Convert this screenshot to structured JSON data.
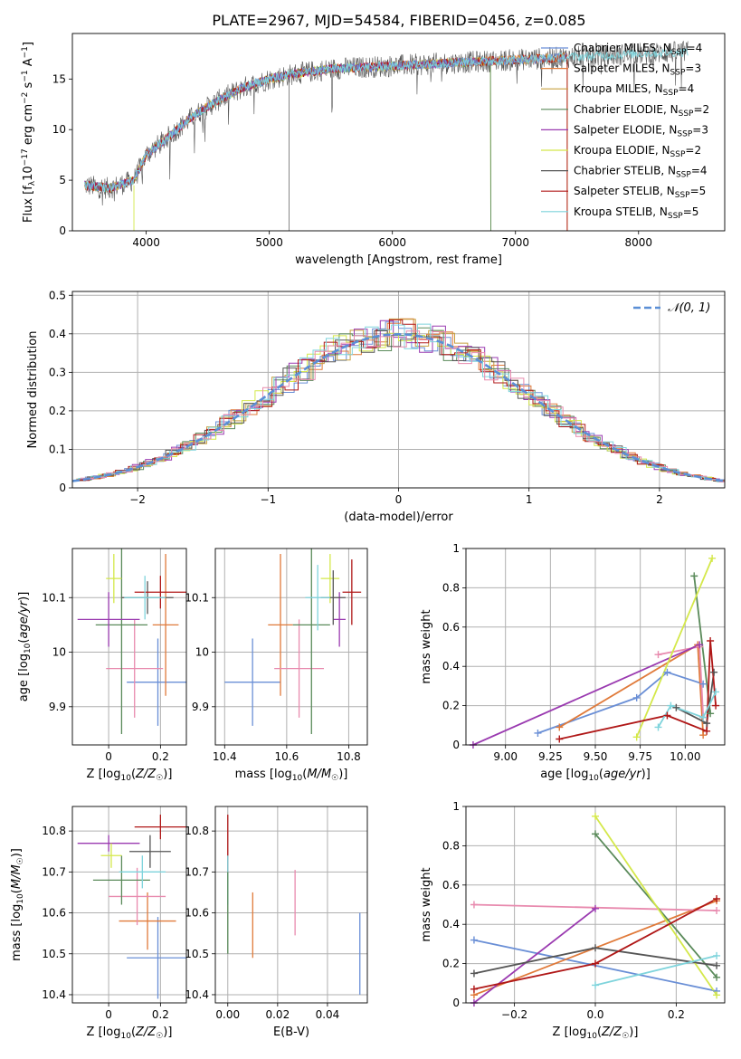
{
  "title": "PLATE=2967, MJD=54584, FIBERID=0456, z=0.085",
  "colors": {
    "chabrier_miles": "#6a8fd6",
    "salpeter_miles": "#e07a3a",
    "kroupa_miles": "#c8a040",
    "chabrier_elodie": "#5a8a5a",
    "salpeter_elodie": "#9a3ab0",
    "kroupa_elodie": "#d4e84a",
    "chabrier_stelib": "#555555",
    "salpeter_stelib": "#b01818",
    "kroupa_stelib": "#7fd4dc",
    "pink": "#e88aae",
    "normal": "#5b8fd6",
    "grid": "#b0b0b0"
  },
  "chart_data": [
    {
      "id": "spectrum",
      "type": "line",
      "xlabel": "wavelength [Angstrom, rest frame]",
      "ylabel": "Flux [f_λ10^-17 erg cm^-2 s^-1 A^-1]",
      "xlim": [
        3400,
        8700
      ],
      "ylim": [
        0,
        19.5
      ],
      "xticks": [
        4000,
        5000,
        6000,
        7000,
        8000
      ],
      "yticks": [
        0,
        5,
        10,
        15
      ],
      "legend_position": "upper right",
      "continuum_knots": [
        [
          3500,
          4.5
        ],
        [
          3700,
          4.2
        ],
        [
          3900,
          5.0
        ],
        [
          4000,
          7.5
        ],
        [
          4200,
          9.5
        ],
        [
          4400,
          11.5
        ],
        [
          4600,
          13.0
        ],
        [
          4800,
          14.2
        ],
        [
          5000,
          15.0
        ],
        [
          5200,
          15.5
        ],
        [
          5500,
          16.0
        ],
        [
          6000,
          16.3
        ],
        [
          6500,
          16.6
        ],
        [
          7000,
          16.9
        ],
        [
          7500,
          17.2
        ],
        [
          8000,
          17.5
        ],
        [
          8400,
          17.7
        ]
      ],
      "series": [
        {
          "name": "Chabrier MILES, N_SSP=4",
          "color_key": "chabrier_miles",
          "dash": false
        },
        {
          "name": "Salpeter MILES, N_SSP=3",
          "color_key": "salpeter_miles",
          "dash": false
        },
        {
          "name": "Kroupa MILES, N_SSP=4",
          "color_key": "kroupa_miles",
          "dash": false
        },
        {
          "name": "Chabrier ELODIE, N_SSP=2",
          "color_key": "chabrier_elodie",
          "dash": false
        },
        {
          "name": "Salpeter ELODIE, N_SSP=3",
          "color_key": "salpeter_elodie",
          "dash": false
        },
        {
          "name": "Kroupa ELODIE, N_SSP=2",
          "color_key": "kroupa_elodie",
          "dash": false
        },
        {
          "name": "Chabrier STELIB, N_SSP=4",
          "color_key": "chabrier_stelib",
          "dash": false
        },
        {
          "name": "Salpeter STELIB, N_SSP=5",
          "color_key": "salpeter_stelib",
          "dash": false
        },
        {
          "name": "Kroupa STELIB, N_SSP=5",
          "color_key": "kroupa_stelib",
          "dash": false
        }
      ],
      "legend_labels": [
        [
          "Chabrier MILES, N",
          "SSP",
          "=4"
        ],
        [
          "Salpeter MILES, N",
          "SSP",
          "=3"
        ],
        [
          "Kroupa MILES, N",
          "SSP",
          "=4"
        ],
        [
          "Chabrier ELODIE, N",
          "SSP",
          "=2"
        ],
        [
          "Salpeter ELODIE, N",
          "SSP",
          "=3"
        ],
        [
          "Kroupa ELODIE, N",
          "SSP",
          "=2"
        ],
        [
          "Chabrier STELIB, N",
          "SSP",
          "=4"
        ],
        [
          "Salpeter STELIB, N",
          "SSP",
          "=5"
        ],
        [
          "Kroupa STELIB, N",
          "SSP",
          "=5"
        ]
      ]
    },
    {
      "id": "residuals",
      "type": "histogram",
      "xlabel": "(data-model)/error",
      "ylabel": "Normed distribution",
      "xlim": [
        -2.5,
        2.5
      ],
      "ylim": [
        0,
        0.51
      ],
      "xticks": [
        -2,
        -1,
        0,
        1,
        2
      ],
      "yticks": [
        0.0,
        0.1,
        0.2,
        0.3,
        0.4,
        0.5
      ],
      "bin_width": 0.1,
      "bin_start": -2.5,
      "reference": {
        "name": "N(0,1)",
        "label_main": "𝒩(0, 1)",
        "type": "gaussian",
        "mean": 0,
        "sigma": 1
      },
      "grid": true
    },
    {
      "id": "age_vs_Z",
      "type": "errorbar",
      "xlabel": "Z [log10(Z/Z☉)]",
      "ylabel": "age [log10(age/yr)]",
      "xlim": [
        -0.14,
        0.3
      ],
      "ylim": [
        9.83,
        10.19
      ],
      "xticks": [
        0.0,
        0.2
      ],
      "yticks": [
        9.9,
        10.0,
        10.1
      ],
      "points": [
        {
          "x": 0.19,
          "y": 9.945,
          "xerr": 0.12,
          "yerr": 0.08,
          "color_key": "chabrier_miles"
        },
        {
          "x": 0.22,
          "y": 10.05,
          "xerr": 0.05,
          "yerr": 0.13,
          "color_key": "salpeter_miles"
        },
        {
          "x": 0.1,
          "y": 9.97,
          "xerr": 0.11,
          "yerr": 0.09,
          "color_key": "pink"
        },
        {
          "x": 0.05,
          "y": 10.05,
          "xerr": 0.1,
          "yerr": 0.2,
          "color_key": "chabrier_elodie"
        },
        {
          "x": 0.0,
          "y": 10.06,
          "xerr": 0.12,
          "yerr": 0.05,
          "color_key": "salpeter_elodie"
        },
        {
          "x": 0.02,
          "y": 10.135,
          "xerr": 0.03,
          "yerr": 0.045,
          "color_key": "kroupa_elodie"
        },
        {
          "x": 0.15,
          "y": 10.1,
          "xerr": 0.1,
          "yerr": 0.03,
          "color_key": "chabrier_stelib"
        },
        {
          "x": 0.2,
          "y": 10.11,
          "xerr": 0.1,
          "yerr": 0.03,
          "color_key": "salpeter_stelib"
        },
        {
          "x": 0.14,
          "y": 10.1,
          "xerr": 0.08,
          "yerr": 0.04,
          "color_key": "kroupa_stelib"
        }
      ]
    },
    {
      "id": "age_vs_mass",
      "type": "errorbar",
      "xlabel": "mass [log10(M/M☉)]",
      "ylabel": "",
      "xlim": [
        10.37,
        10.86
      ],
      "ylim": [
        9.83,
        10.19
      ],
      "xticks": [
        10.4,
        10.6,
        10.8
      ],
      "yticks": [
        9.9,
        10.0,
        10.1
      ],
      "points": [
        {
          "x": 10.49,
          "y": 9.945,
          "xerr": 0.09,
          "yerr": 0.08,
          "color_key": "chabrier_miles"
        },
        {
          "x": 10.58,
          "y": 10.05,
          "xerr": 0.04,
          "yerr": 0.13,
          "color_key": "salpeter_miles"
        },
        {
          "x": 10.64,
          "y": 9.97,
          "xerr": 0.08,
          "yerr": 0.09,
          "color_key": "pink"
        },
        {
          "x": 10.68,
          "y": 10.05,
          "xerr": 0.06,
          "yerr": 0.2,
          "color_key": "chabrier_elodie"
        },
        {
          "x": 10.77,
          "y": 10.06,
          "xerr": 0.02,
          "yerr": 0.05,
          "color_key": "salpeter_elodie"
        },
        {
          "x": 10.74,
          "y": 10.135,
          "xerr": 0.03,
          "yerr": 0.045,
          "color_key": "kroupa_elodie"
        },
        {
          "x": 10.75,
          "y": 10.1,
          "xerr": 0.04,
          "yerr": 0.05,
          "color_key": "chabrier_stelib"
        },
        {
          "x": 10.81,
          "y": 10.11,
          "xerr": 0.03,
          "yerr": 0.06,
          "color_key": "salpeter_stelib"
        },
        {
          "x": 10.7,
          "y": 10.1,
          "xerr": 0.04,
          "yerr": 0.06,
          "color_key": "kroupa_stelib"
        }
      ]
    },
    {
      "id": "weight_vs_age",
      "type": "line",
      "xlabel": "age [log10(age/yr)]",
      "ylabel": "mass weight",
      "xlim": [
        8.78,
        10.22
      ],
      "ylim": [
        0,
        1.0
      ],
      "xticks": [
        9.0,
        9.25,
        9.5,
        9.75,
        10.0
      ],
      "xticklabels": [
        "9.00",
        "9.25",
        "9.50",
        "9.75",
        "10.00"
      ],
      "yticks": [
        0.0,
        0.2,
        0.4,
        0.6,
        0.8,
        1.0
      ],
      "series": [
        {
          "color_key": "chabrier_miles",
          "points": [
            [
              9.18,
              0.06
            ],
            [
              9.73,
              0.24
            ],
            [
              9.9,
              0.37
            ],
            [
              10.1,
              0.31
            ]
          ]
        },
        {
          "color_key": "salpeter_miles",
          "points": [
            [
              9.3,
              0.09
            ],
            [
              10.07,
              0.51
            ],
            [
              10.1,
              0.05
            ]
          ]
        },
        {
          "color_key": "pink",
          "points": [
            [
              9.85,
              0.46
            ],
            [
              10.08,
              0.5
            ],
            [
              10.1,
              0.14
            ]
          ]
        },
        {
          "color_key": "chabrier_elodie",
          "points": [
            [
              10.05,
              0.86
            ],
            [
              10.14,
              0.16
            ]
          ]
        },
        {
          "color_key": "salpeter_elodie",
          "points": [
            [
              8.82,
              0.0
            ],
            [
              10.08,
              0.51
            ]
          ]
        },
        {
          "color_key": "kroupa_elodie",
          "points": [
            [
              9.73,
              0.04
            ],
            [
              10.15,
              0.95
            ]
          ]
        },
        {
          "color_key": "chabrier_stelib",
          "points": [
            [
              9.95,
              0.19
            ],
            [
              10.12,
              0.11
            ],
            [
              10.16,
              0.37
            ]
          ]
        },
        {
          "color_key": "salpeter_stelib",
          "points": [
            [
              9.3,
              0.03
            ],
            [
              9.9,
              0.15
            ],
            [
              10.12,
              0.07
            ],
            [
              10.14,
              0.53
            ],
            [
              10.17,
              0.2
            ]
          ]
        },
        {
          "color_key": "kroupa_stelib",
          "points": [
            [
              9.85,
              0.09
            ],
            [
              9.92,
              0.2
            ],
            [
              10.1,
              0.14
            ],
            [
              10.17,
              0.27
            ]
          ]
        }
      ]
    },
    {
      "id": "mass_vs_Z",
      "type": "errorbar",
      "xlabel": "Z [log10(Z/Z☉)]",
      "ylabel": "mass [log10(M/M☉)]",
      "xlim": [
        -0.14,
        0.3
      ],
      "ylim": [
        10.38,
        10.86
      ],
      "xticks": [
        0.0,
        0.2
      ],
      "yticks": [
        10.4,
        10.5,
        10.6,
        10.7,
        10.8
      ],
      "points": [
        {
          "x": 0.19,
          "y": 10.49,
          "xerr": 0.12,
          "yerr": 0.1,
          "color_key": "chabrier_miles"
        },
        {
          "x": 0.15,
          "y": 10.58,
          "xerr": 0.11,
          "yerr": 0.07,
          "color_key": "salpeter_miles"
        },
        {
          "x": 0.11,
          "y": 10.64,
          "xerr": 0.11,
          "yerr": 0.07,
          "color_key": "pink"
        },
        {
          "x": 0.05,
          "y": 10.68,
          "xerr": 0.11,
          "yerr": 0.06,
          "color_key": "chabrier_elodie"
        },
        {
          "x": 0.0,
          "y": 10.77,
          "xerr": 0.12,
          "yerr": 0.02,
          "color_key": "salpeter_elodie"
        },
        {
          "x": 0.01,
          "y": 10.74,
          "xerr": 0.04,
          "yerr": 0.03,
          "color_key": "kroupa_elodie"
        },
        {
          "x": 0.16,
          "y": 10.75,
          "xerr": 0.08,
          "yerr": 0.04,
          "color_key": "chabrier_stelib"
        },
        {
          "x": 0.2,
          "y": 10.81,
          "xerr": 0.1,
          "yerr": 0.03,
          "color_key": "salpeter_stelib"
        },
        {
          "x": 0.13,
          "y": 10.7,
          "xerr": 0.09,
          "yerr": 0.04,
          "color_key": "kroupa_stelib"
        }
      ]
    },
    {
      "id": "mass_vs_ebv",
      "type": "errorbar",
      "xlabel": "E(B-V)",
      "ylabel": "",
      "xlim": [
        -0.005,
        0.056
      ],
      "ylim": [
        10.38,
        10.86
      ],
      "xticks": [
        0.0,
        0.02,
        0.04
      ],
      "xticklabels": [
        "0.00",
        "0.02",
        "0.04"
      ],
      "yticks": [
        10.4,
        10.5,
        10.6,
        10.7,
        10.8
      ],
      "points": [
        {
          "x": 0.0,
          "y": 10.77,
          "xerr": 0,
          "yerr": 0.07,
          "color_key": "salpeter_stelib"
        },
        {
          "x": 0.0,
          "y": 10.68,
          "xerr": 0,
          "yerr": 0.06,
          "color_key": "kroupa_stelib"
        },
        {
          "x": 0.0,
          "y": 10.6,
          "xerr": 0,
          "yerr": 0.1,
          "color_key": "chabrier_elodie"
        },
        {
          "x": 0.01,
          "y": 10.57,
          "xerr": 0,
          "yerr": 0.08,
          "color_key": "salpeter_miles"
        },
        {
          "x": 0.027,
          "y": 10.625,
          "xerr": 0,
          "yerr": 0.08,
          "color_key": "pink"
        },
        {
          "x": 0.053,
          "y": 10.5,
          "xerr": 0,
          "yerr": 0.1,
          "color_key": "chabrier_miles"
        }
      ]
    },
    {
      "id": "weight_vs_Z",
      "type": "line",
      "xlabel": "Z [log10(Z/Z☉)]",
      "ylabel": "mass weight",
      "xlim": [
        -0.32,
        0.32
      ],
      "ylim": [
        0,
        1.0
      ],
      "xticks": [
        -0.2,
        0.0,
        0.2
      ],
      "xticklabels": [
        "−0.2",
        "0.0",
        "0.2"
      ],
      "yticks": [
        0.0,
        0.2,
        0.4,
        0.6,
        0.8,
        1.0
      ],
      "series": [
        {
          "color_key": "chabrier_miles",
          "points": [
            [
              -0.3,
              0.32
            ],
            [
              0.3,
              0.06
            ]
          ]
        },
        {
          "color_key": "salpeter_miles",
          "points": [
            [
              -0.3,
              0.04
            ],
            [
              0.3,
              0.52
            ]
          ]
        },
        {
          "color_key": "pink",
          "points": [
            [
              -0.3,
              0.5
            ],
            [
              0.3,
              0.47
            ]
          ]
        },
        {
          "color_key": "chabrier_elodie",
          "points": [
            [
              0.0,
              0.86
            ],
            [
              0.3,
              0.13
            ]
          ]
        },
        {
          "color_key": "salpeter_elodie",
          "points": [
            [
              -0.3,
              0.0
            ],
            [
              0.0,
              0.48
            ]
          ]
        },
        {
          "color_key": "kroupa_elodie",
          "points": [
            [
              0.0,
              0.95
            ],
            [
              0.3,
              0.04
            ]
          ]
        },
        {
          "color_key": "chabrier_stelib",
          "points": [
            [
              -0.3,
              0.15
            ],
            [
              0.0,
              0.28
            ],
            [
              0.3,
              0.19
            ]
          ]
        },
        {
          "color_key": "salpeter_stelib",
          "points": [
            [
              -0.3,
              0.07
            ],
            [
              0.0,
              0.2
            ],
            [
              0.3,
              0.53
            ]
          ]
        },
        {
          "color_key": "kroupa_stelib",
          "points": [
            [
              0.0,
              0.09
            ],
            [
              0.3,
              0.24
            ]
          ]
        }
      ]
    }
  ]
}
